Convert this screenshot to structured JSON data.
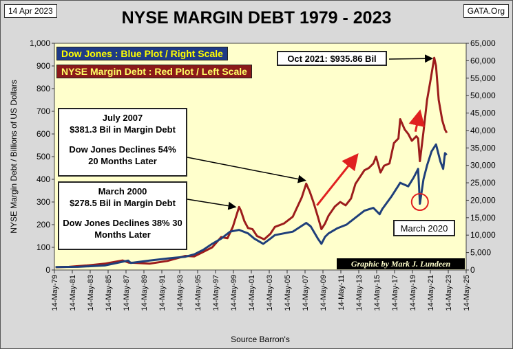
{
  "header": {
    "date": "14 Apr 2023",
    "source_site": "GATA.Org",
    "title": "NYSE MARGIN DEBT 1979 - 2023"
  },
  "legend": {
    "dow": "Dow Jones : Blue Plot / Right Scale",
    "margin": "NYSE Margin Debt : Red Plot / Left Scale"
  },
  "annotations": {
    "peak_2021": "Oct 2021:  $935.86  Bil",
    "july2007": [
      "July 2007",
      "$381.3  Bil in Margin Debt",
      "Dow Jones Declines 54%",
      "20 Months Later"
    ],
    "march2000": [
      "March  2000",
      "$278.5  Bil in Margin Debt",
      "Dow Jones Declines 38% 30",
      "Months Later"
    ],
    "march2020": "March  2020"
  },
  "credit": "Graphic by Mark J. Lundeen",
  "colors": {
    "plot_bg": "#ffffcc",
    "margin_line": "#9c1c1c",
    "dow_line": "#1f3f7a",
    "arrow_red": "#e02020",
    "legend_dow_bg": "#1f3b86",
    "legend_dow_text": "#ffff00",
    "legend_margin_bg": "#8b1a1a",
    "legend_margin_text": "#ffff66"
  },
  "chart_data": {
    "type": "line",
    "title": "NYSE MARGIN DEBT 1979 - 2023",
    "xlabel": "Source Barron's",
    "ylabel": "NYSE Margin Debt  /  Billions of  US Dollars",
    "ylim": [
      0,
      1000
    ],
    "y2lim": [
      0,
      65000
    ],
    "xlim": [
      1979.37,
      2025.37
    ],
    "y_ticks": [
      "0",
      "100",
      "200",
      "300",
      "400",
      "500",
      "600",
      "700",
      "800",
      "900",
      "1,000"
    ],
    "y2_ticks": [
      "0",
      "5,000",
      "10,000",
      "15,000",
      "20,000",
      "25,000",
      "30,000",
      "35,000",
      "40,000",
      "45,000",
      "50,000",
      "55,000",
      "60,000",
      "65,000"
    ],
    "x_ticks": [
      "14-May-79",
      "14-May-81",
      "14-May-83",
      "14-May-85",
      "14-May-87",
      "14-May-89",
      "14-May-91",
      "14-May-93",
      "14-May-95",
      "14-May-97",
      "14-May-99",
      "14-May-01",
      "14-May-03",
      "14-May-05",
      "14-May-07",
      "14-May-09",
      "14-May-11",
      "14-May-13",
      "14-May-15",
      "14-May-17",
      "14-May-19",
      "14-May-21",
      "14-May-23",
      "14-May-25"
    ],
    "series": [
      {
        "name": "NYSE Margin Debt (Billions USD, left scale)",
        "axis": "left",
        "x": [
          1979.5,
          1981,
          1983,
          1985,
          1987.0,
          1987.7,
          1988,
          1990,
          1992,
          1994,
          1995,
          1996,
          1997,
          1998,
          1998.7,
          1999.3,
          2000.0,
          2000.2,
          2000.6,
          2001.0,
          2001.5,
          2002,
          2002.8,
          2003.5,
          2004,
          2005,
          2006,
          2007.0,
          2007.5,
          2007.9,
          2008.3,
          2008.8,
          2009.2,
          2009.6,
          2010,
          2010.7,
          2011.3,
          2011.9,
          2012.5,
          2013,
          2013.5,
          2014,
          2014.5,
          2015.0,
          2015.3,
          2015.8,
          2016.2,
          2016.8,
          2017.3,
          2017.8,
          2018.0,
          2018.5,
          2018.9,
          2019.3,
          2019.8,
          2020.0,
          2020.2,
          2020.6,
          2021.0,
          2021.4,
          2021.8,
          2022.0,
          2022.3,
          2022.7,
          2023.0,
          2023.2
        ],
        "values": [
          12,
          14,
          20,
          28,
          42,
          32,
          32,
          28,
          40,
          62,
          60,
          80,
          100,
          145,
          140,
          190,
          278,
          262,
          215,
          185,
          180,
          150,
          135,
          160,
          190,
          205,
          235,
          320,
          381,
          345,
          300,
          235,
          180,
          205,
          240,
          280,
          300,
          285,
          315,
          380,
          410,
          440,
          450,
          470,
          500,
          430,
          460,
          470,
          560,
          580,
          665,
          620,
          600,
          570,
          590,
          580,
          480,
          610,
          750,
          840,
          936,
          900,
          750,
          660,
          620,
          605
        ]
      },
      {
        "name": "Dow Jones Industrial Average (right scale)",
        "axis": "right",
        "x": [
          1979.5,
          1982,
          1985,
          1987.6,
          1987.9,
          1990,
          1992,
          1994,
          1995,
          1996,
          1997,
          1998,
          1999,
          2000.0,
          2001,
          2001.7,
          2002.7,
          2003.5,
          2004,
          2005,
          2006,
          2007.5,
          2008,
          2008.8,
          2009.2,
          2009.6,
          2010,
          2011,
          2012,
          2013,
          2014,
          2015,
          2015.7,
          2016,
          2017,
          2018,
          2018.9,
          2019.5,
          2020.0,
          2020.2,
          2020.6,
          2021.0,
          2021.5,
          2022.0,
          2022.5,
          2022.8,
          2023.0,
          2023.2
        ],
        "values": [
          850,
          900,
          1300,
          2700,
          2000,
          2700,
          3300,
          3800,
          4500,
          5800,
          7500,
          9000,
          11000,
          11500,
          10500,
          9000,
          7500,
          9000,
          10000,
          10500,
          11000,
          13500,
          12500,
          9000,
          7500,
          9500,
          10500,
          12000,
          13000,
          15000,
          17000,
          17800,
          16000,
          17500,
          21000,
          25000,
          24000,
          26500,
          29000,
          19000,
          26000,
          30000,
          34000,
          36000,
          31000,
          29000,
          33500,
          33000
        ]
      }
    ]
  }
}
